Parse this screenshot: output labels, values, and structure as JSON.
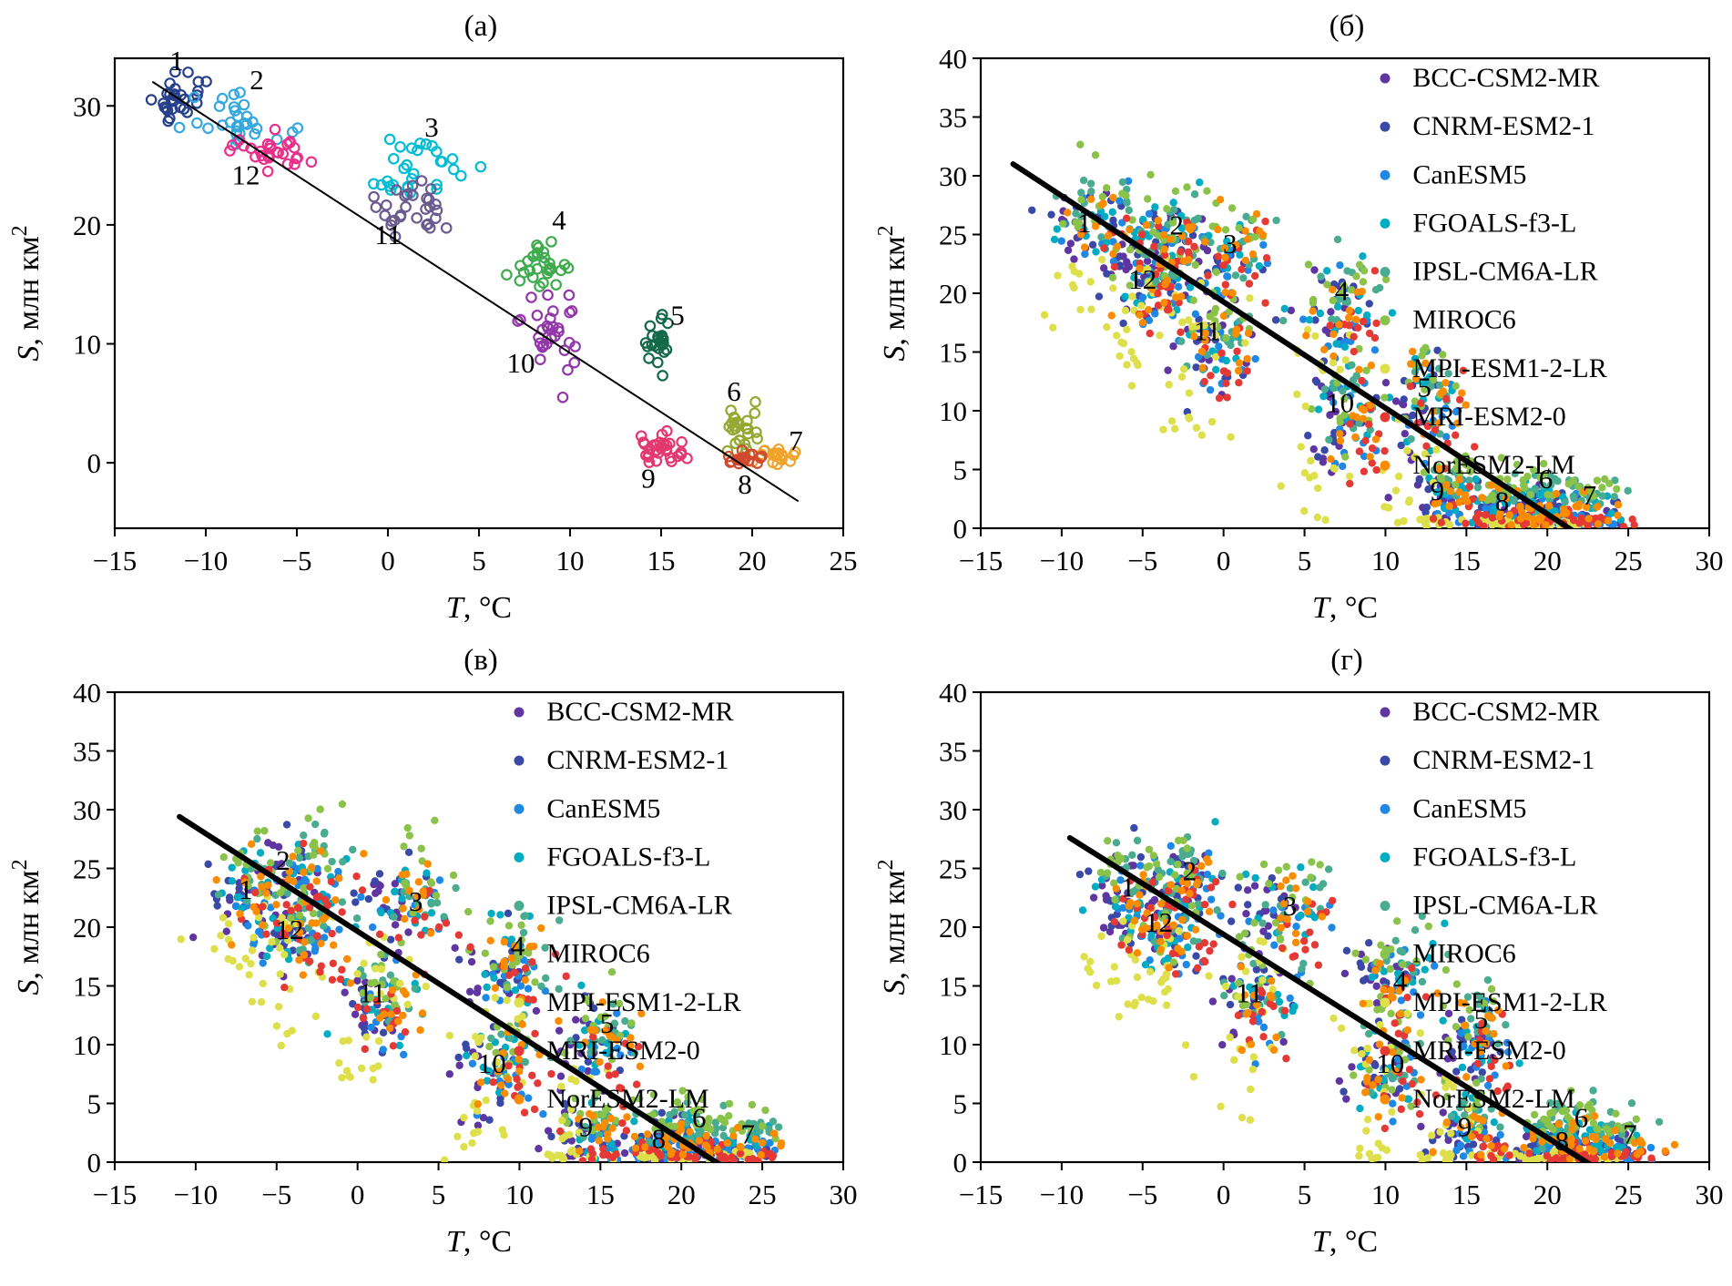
{
  "models": [
    {
      "name": "BCC-CSM2-MR",
      "color": "#5e35a1",
      "dt": -1.0,
      "ds": 0.2
    },
    {
      "name": "CNRM-ESM2-1",
      "color": "#3a49a8",
      "dt": -0.4,
      "ds": 0.6
    },
    {
      "name": "CanESM5",
      "color": "#1f88e5",
      "dt": 0.4,
      "ds": -0.2
    },
    {
      "name": "FGOALS-f3-L",
      "color": "#00acc1",
      "dt": 0.1,
      "ds": 0.9
    },
    {
      "name": "IPSL-CM6A-LR",
      "color": "#49ab8f",
      "dt": 0.6,
      "ds": 2.0
    },
    {
      "name": "MIROC6",
      "color": "#8bc34a",
      "dt": 0.0,
      "ds": 2.6
    },
    {
      "name": "MPI-ESM1-2-LR",
      "color": "#dde04a",
      "dt": -1.2,
      "ds": -4.8
    },
    {
      "name": "MRI-ESM2-0",
      "color": "#e53935",
      "dt": 1.1,
      "ds": -1.0
    },
    {
      "name": "NorESM2-LM",
      "color": "#fb8c00",
      "dt": 0.4,
      "ds": 0.4
    }
  ],
  "chart_data": [
    {
      "id": "a",
      "title": "(а)",
      "type": "scatter",
      "xlabel": {
        "sym": "T",
        "rest": ", °C"
      },
      "ylabel": {
        "sym": "S",
        "rest": ", млн км",
        "sup": "2"
      },
      "xlim": [
        -15,
        25
      ],
      "ylim": [
        -5.5,
        34
      ],
      "xticks": [
        -15,
        -10,
        -5,
        0,
        5,
        10,
        15,
        20,
        25
      ],
      "yticks": [
        0,
        10,
        20,
        30
      ],
      "marker": "open-circle",
      "fit_line": {
        "t1": -12.9,
        "s1": 32.0,
        "t2": 22.5,
        "s2": -3.2,
        "width": 2
      },
      "clusters": [
        {
          "month": 1,
          "color": "#27408b",
          "t": -11.4,
          "s": 30.4,
          "st": 0.7,
          "ss": 1.0,
          "n": 30
        },
        {
          "month": 2,
          "color": "#35a8dd",
          "t": -8.2,
          "s": 28.6,
          "st": 1.3,
          "ss": 1.0,
          "n": 30
        },
        {
          "month": 3,
          "color": "#00bcd4",
          "t": 1.6,
          "s": 24.6,
          "st": 1.2,
          "ss": 1.2,
          "n": 30
        },
        {
          "month": 4,
          "color": "#3faa4e",
          "t": 8.6,
          "s": 16.6,
          "st": 0.7,
          "ss": 1.3,
          "n": 28
        },
        {
          "month": 5,
          "color": "#14694a",
          "t": 14.8,
          "s": 10.3,
          "st": 0.45,
          "ss": 1.2,
          "n": 24
        },
        {
          "month": 6,
          "color": "#95a832",
          "t": 19.3,
          "s": 2.6,
          "st": 0.5,
          "ss": 1.2,
          "n": 26
        },
        {
          "month": 7,
          "color": "#f0a32a",
          "t": 21.6,
          "s": 0.5,
          "st": 0.7,
          "ss": 0.3,
          "n": 20
        },
        {
          "month": 8,
          "color": "#d1492e",
          "t": 19.6,
          "s": 0.4,
          "st": 0.5,
          "ss": 0.3,
          "n": 18
        },
        {
          "month": 9,
          "color": "#e3386f",
          "t": 15.1,
          "s": 1.3,
          "st": 0.8,
          "ss": 0.7,
          "n": 30
        },
        {
          "month": 10,
          "color": "#9137a8",
          "t": 8.8,
          "s": 11.0,
          "st": 0.8,
          "ss": 1.9,
          "n": 30
        },
        {
          "month": 11,
          "color": "#6a5a8e",
          "t": 1.0,
          "s": 21.2,
          "st": 1.1,
          "ss": 1.2,
          "n": 30
        },
        {
          "month": 12,
          "color": "#e8308a",
          "t": -6.6,
          "s": 26.3,
          "st": 0.9,
          "ss": 0.8,
          "n": 28
        }
      ],
      "month_labels": [
        {
          "text": "1",
          "t": -11.6,
          "s": 33.0,
          "color": "#27408b"
        },
        {
          "text": "2",
          "t": -7.2,
          "s": 31.4,
          "color": "#35a8dd"
        },
        {
          "text": "3",
          "t": 2.4,
          "s": 27.4,
          "color": "#00bcd4"
        },
        {
          "text": "4",
          "t": 9.4,
          "s": 19.6,
          "color": "#3faa4e"
        },
        {
          "text": "5",
          "t": 15.9,
          "s": 11.6,
          "color": "#14694a"
        },
        {
          "text": "6",
          "t": 19.0,
          "s": 5.2,
          "color": "#95a832"
        },
        {
          "text": "7",
          "t": 22.4,
          "s": 1.1,
          "color": "#f0a32a"
        },
        {
          "text": "8",
          "t": 19.6,
          "s": -2.6,
          "color": "#d1492e"
        },
        {
          "text": "9",
          "t": 14.3,
          "s": -2.1,
          "color": "#e3386f"
        },
        {
          "text": "10",
          "t": 7.3,
          "s": 7.6,
          "color": "#9137a8"
        },
        {
          "text": "11",
          "t": 0.0,
          "s": 18.4,
          "color": "#6a5a8e"
        },
        {
          "text": "12",
          "t": -7.8,
          "s": 23.4,
          "color": "#e8308a"
        }
      ]
    },
    {
      "id": "b",
      "title": "(б)",
      "type": "scatter",
      "xlabel": {
        "sym": "T",
        "rest": ", °C"
      },
      "ylabel": {
        "sym": "S",
        "rest": ", млн км",
        "sup": "2"
      },
      "xlim": [
        -15,
        30
      ],
      "ylim": [
        0,
        40
      ],
      "xticks": [
        -15,
        -10,
        -5,
        0,
        5,
        10,
        15,
        20,
        25,
        30
      ],
      "yticks": [
        0,
        5,
        10,
        15,
        20,
        25,
        30,
        35,
        40
      ],
      "marker": "filled-circle",
      "uses_models": true,
      "legend": true,
      "points_per_model": 13,
      "fit_line": {
        "t1": -13.0,
        "s1": 31.0,
        "t2": 23.0,
        "s2": -1.5,
        "width": 6
      },
      "month_centers": [
        {
          "month": 1,
          "t": -7.8,
          "s": 25.6,
          "st": 1.2,
          "ss": 1.8
        },
        {
          "month": 2,
          "t": -3.6,
          "s": 24.3,
          "st": 1.2,
          "ss": 1.6
        },
        {
          "month": 3,
          "t": 0.2,
          "s": 22.8,
          "st": 1.3,
          "ss": 1.7
        },
        {
          "month": 4,
          "t": 7.0,
          "s": 17.8,
          "st": 1.2,
          "ss": 1.8
        },
        {
          "month": 5,
          "t": 12.6,
          "s": 9.8,
          "st": 1.0,
          "ss": 2.0
        },
        {
          "month": 6,
          "t": 19.6,
          "s": 1.6,
          "st": 1.0,
          "ss": 1.0
        },
        {
          "month": 7,
          "t": 22.3,
          "s": 1.0,
          "st": 1.2,
          "ss": 0.7
        },
        {
          "month": 8,
          "t": 17.3,
          "s": 1.2,
          "st": 1.0,
          "ss": 0.9
        },
        {
          "month": 9,
          "t": 13.8,
          "s": 2.2,
          "st": 1.0,
          "ss": 1.2
        },
        {
          "month": 10,
          "t": 7.6,
          "s": 8.6,
          "st": 1.0,
          "ss": 2.2
        },
        {
          "month": 11,
          "t": -0.6,
          "s": 14.8,
          "st": 1.2,
          "ss": 2.0
        },
        {
          "month": 12,
          "t": -4.6,
          "s": 20.2,
          "st": 1.1,
          "ss": 1.6
        }
      ],
      "month_labels": [
        {
          "text": "1",
          "t": -8.6,
          "s": 25.2
        },
        {
          "text": "2",
          "t": -2.9,
          "s": 25.0
        },
        {
          "text": "3",
          "t": 0.4,
          "s": 23.4
        },
        {
          "text": "12",
          "t": -5.0,
          "s": 20.4
        },
        {
          "text": "11",
          "t": -1.0,
          "s": 16.0
        },
        {
          "text": "4",
          "t": 7.3,
          "s": 19.4
        },
        {
          "text": "10",
          "t": 7.2,
          "s": 9.9
        },
        {
          "text": "5",
          "t": 12.4,
          "s": 11.2
        },
        {
          "text": "9",
          "t": 13.2,
          "s": 2.4
        },
        {
          "text": "8",
          "t": 17.2,
          "s": 1.5
        },
        {
          "text": "6",
          "t": 19.9,
          "s": 3.4
        },
        {
          "text": "7",
          "t": 22.6,
          "s": 2.0
        }
      ]
    },
    {
      "id": "v",
      "title": "(в)",
      "type": "scatter",
      "xlabel": {
        "sym": "T",
        "rest": ", °C"
      },
      "ylabel": {
        "sym": "S",
        "rest": ", млн км",
        "sup": "2"
      },
      "xlim": [
        -15,
        30
      ],
      "ylim": [
        0,
        40
      ],
      "xticks": [
        -15,
        -10,
        -5,
        0,
        5,
        10,
        15,
        20,
        25,
        30
      ],
      "yticks": [
        0,
        5,
        10,
        15,
        20,
        25,
        30,
        35,
        40
      ],
      "marker": "filled-circle",
      "uses_models": true,
      "legend": true,
      "points_per_model": 13,
      "fit_line": {
        "t1": -11.0,
        "s1": 29.4,
        "t2": 23.5,
        "s2": -1.2,
        "width": 6
      },
      "month_centers": [
        {
          "month": 1,
          "t": -6.6,
          "s": 22.6,
          "st": 1.2,
          "ss": 1.8
        },
        {
          "month": 2,
          "t": -3.3,
          "s": 24.0,
          "st": 1.2,
          "ss": 1.6
        },
        {
          "month": 3,
          "t": 3.2,
          "s": 21.4,
          "st": 1.3,
          "ss": 1.7
        },
        {
          "month": 4,
          "t": 9.6,
          "s": 16.2,
          "st": 1.2,
          "ss": 1.8
        },
        {
          "month": 5,
          "t": 14.9,
          "s": 9.6,
          "st": 1.0,
          "ss": 2.0
        },
        {
          "month": 6,
          "t": 20.9,
          "s": 1.5,
          "st": 1.0,
          "ss": 1.0
        },
        {
          "month": 7,
          "t": 23.6,
          "s": 0.9,
          "st": 1.2,
          "ss": 0.7
        },
        {
          "month": 8,
          "t": 18.6,
          "s": 1.1,
          "st": 1.0,
          "ss": 0.9
        },
        {
          "month": 9,
          "t": 14.6,
          "s": 2.0,
          "st": 1.0,
          "ss": 1.2
        },
        {
          "month": 10,
          "t": 8.8,
          "s": 7.6,
          "st": 1.0,
          "ss": 2.2
        },
        {
          "month": 11,
          "t": 1.2,
          "s": 13.2,
          "st": 1.2,
          "ss": 2.0
        },
        {
          "month": 12,
          "t": -3.6,
          "s": 18.6,
          "st": 1.1,
          "ss": 1.6
        }
      ],
      "month_labels": [
        {
          "text": "2",
          "t": -4.6,
          "s": 24.9
        },
        {
          "text": "1",
          "t": -6.9,
          "s": 22.4
        },
        {
          "text": "12",
          "t": -4.2,
          "s": 19.0
        },
        {
          "text": "3",
          "t": 3.6,
          "s": 21.4
        },
        {
          "text": "11",
          "t": 0.9,
          "s": 13.6
        },
        {
          "text": "4",
          "t": 9.9,
          "s": 17.6
        },
        {
          "text": "10",
          "t": 8.3,
          "s": 7.6
        },
        {
          "text": "5",
          "t": 15.4,
          "s": 11.0
        },
        {
          "text": "9",
          "t": 14.1,
          "s": 2.2
        },
        {
          "text": "8",
          "t": 18.6,
          "s": 1.2
        },
        {
          "text": "6",
          "t": 21.1,
          "s": 3.0
        },
        {
          "text": "7",
          "t": 24.1,
          "s": 1.6
        }
      ]
    },
    {
      "id": "g",
      "title": "(г)",
      "type": "scatter",
      "xlabel": {
        "sym": "T",
        "rest": ", °C"
      },
      "ylabel": {
        "sym": "S",
        "rest": ", млн км",
        "sup": "2"
      },
      "xlim": [
        -15,
        30
      ],
      "ylim": [
        0,
        40
      ],
      "xticks": [
        -15,
        -10,
        -5,
        0,
        5,
        10,
        15,
        20,
        25,
        30
      ],
      "yticks": [
        0,
        5,
        10,
        15,
        20,
        25,
        30,
        35,
        40
      ],
      "marker": "filled-circle",
      "uses_models": true,
      "legend": true,
      "points_per_model": 13,
      "fit_line": {
        "t1": -9.5,
        "s1": 27.6,
        "t2": 23.8,
        "s2": -1.2,
        "width": 6
      },
      "month_centers": [
        {
          "month": 1,
          "t": -5.9,
          "s": 22.0,
          "st": 1.2,
          "ss": 1.8
        },
        {
          "month": 2,
          "t": -2.4,
          "s": 23.4,
          "st": 1.2,
          "ss": 1.6
        },
        {
          "month": 3,
          "t": 3.8,
          "s": 20.8,
          "st": 1.3,
          "ss": 1.7
        },
        {
          "month": 4,
          "t": 10.6,
          "s": 15.2,
          "st": 1.2,
          "ss": 1.8
        },
        {
          "month": 5,
          "t": 15.6,
          "s": 9.8,
          "st": 1.0,
          "ss": 2.0
        },
        {
          "month": 6,
          "t": 21.4,
          "s": 1.5,
          "st": 1.0,
          "ss": 1.0
        },
        {
          "month": 7,
          "t": 24.1,
          "s": 0.9,
          "st": 1.2,
          "ss": 0.7
        },
        {
          "month": 8,
          "t": 19.9,
          "s": 1.0,
          "st": 1.0,
          "ss": 0.9
        },
        {
          "month": 9,
          "t": 15.1,
          "s": 2.0,
          "st": 1.0,
          "ss": 1.2
        },
        {
          "month": 10,
          "t": 10.0,
          "s": 7.2,
          "st": 1.0,
          "ss": 2.2
        },
        {
          "month": 11,
          "t": 1.9,
          "s": 13.0,
          "st": 1.2,
          "ss": 2.0
        },
        {
          "month": 12,
          "t": -3.4,
          "s": 18.8,
          "st": 1.1,
          "ss": 1.6
        }
      ],
      "month_labels": [
        {
          "text": "1",
          "t": -5.9,
          "s": 22.6
        },
        {
          "text": "2",
          "t": -2.1,
          "s": 24.0
        },
        {
          "text": "12",
          "t": -4.0,
          "s": 19.6
        },
        {
          "text": "3",
          "t": 4.1,
          "s": 21.0
        },
        {
          "text": "11",
          "t": 1.6,
          "s": 13.6
        },
        {
          "text": "4",
          "t": 10.9,
          "s": 14.6
        },
        {
          "text": "10",
          "t": 10.3,
          "s": 7.6
        },
        {
          "text": "5",
          "t": 15.9,
          "s": 11.4
        },
        {
          "text": "9",
          "t": 14.9,
          "s": 2.2
        },
        {
          "text": "8",
          "t": 20.9,
          "s": 1.0
        },
        {
          "text": "6",
          "t": 22.1,
          "s": 3.0
        },
        {
          "text": "7",
          "t": 25.1,
          "s": 1.6
        }
      ]
    }
  ]
}
